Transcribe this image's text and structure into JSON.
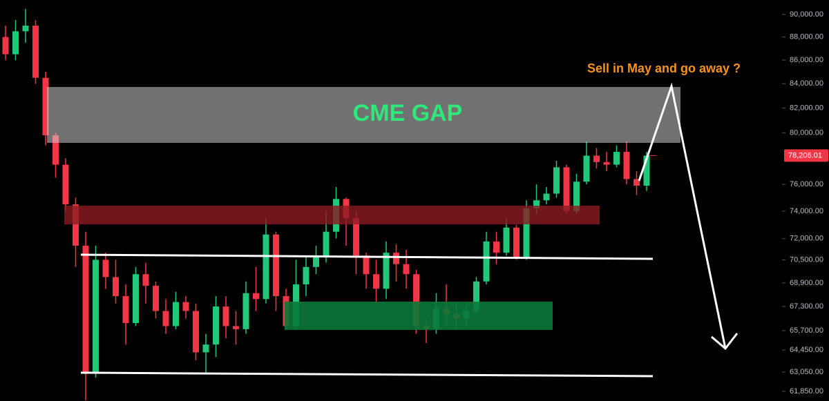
{
  "chart_data": {
    "type": "candlestick",
    "log_scale": true,
    "ylim": [
      61260,
      91300
    ],
    "yticks": [
      {
        "value": 90000,
        "label": "90,000.00"
      },
      {
        "value": 88000,
        "label": "88,000.00"
      },
      {
        "value": 86000,
        "label": "86,000.00"
      },
      {
        "value": 84000,
        "label": "84,000.00"
      },
      {
        "value": 82000,
        "label": "82,000.00"
      },
      {
        "value": 80000,
        "label": "80,000.00"
      },
      {
        "value": 76000,
        "label": "76,000.00"
      },
      {
        "value": 74000,
        "label": "74,000.00"
      },
      {
        "value": 72000,
        "label": "72,000.00"
      },
      {
        "value": 70500,
        "label": "70,500.00"
      },
      {
        "value": 68900,
        "label": "68,900.00"
      },
      {
        "value": 67300,
        "label": "67,300.00"
      },
      {
        "value": 65700,
        "label": "65,700.00"
      },
      {
        "value": 64450,
        "label": "64,450.00"
      },
      {
        "value": 63050,
        "label": "63,050.00"
      },
      {
        "value": 61850,
        "label": "61,850.00"
      }
    ],
    "last_price": {
      "value": 78206.01,
      "label": "78,206.01"
    },
    "up_color": "#22c77a",
    "down_color": "#f23645",
    "annotations": [
      "CME GAP",
      "Sell in May and go away ?"
    ],
    "open": [
      88000,
      86500,
      88500,
      89000,
      84500,
      79800,
      77500,
      74500,
      71500,
      63000,
      70500,
      69300,
      68000,
      66200,
      69500,
      68700,
      67000,
      66000,
      67600,
      67000,
      64300,
      64800,
      67300,
      66000,
      65800,
      68200,
      67800,
      72300,
      68000,
      66000,
      68800,
      70000,
      70800,
      72500,
      74900,
      73500,
      70800,
      69500,
      68500,
      71000,
      70200,
      69500,
      66000,
      65800,
      67200,
      66800,
      66500,
      67000,
      69000,
      71800,
      71000,
      72800,
      70700,
      74200,
      74800,
      75300,
      77300,
      74000,
      76200,
      78200,
      77700,
      77500,
      78500,
      76400,
      75900
    ],
    "high": [
      89000,
      89500,
      90500,
      89500,
      85000,
      80000,
      78000,
      75000,
      72500,
      71500,
      71000,
      70500,
      68800,
      70000,
      70300,
      69000,
      67800,
      68300,
      68000,
      67500,
      65500,
      68000,
      68000,
      67000,
      69000,
      70000,
      73500,
      72500,
      68500,
      70500,
      70800,
      71500,
      74000,
      75800,
      75000,
      74000,
      71000,
      70500,
      71800,
      71600,
      71200,
      69800,
      66500,
      68200,
      68800,
      67500,
      67400,
      69300,
      72500,
      72500,
      73500,
      73000,
      74800,
      76000,
      75800,
      77800,
      77500,
      76800,
      79300,
      78800,
      78500,
      79000,
      79300,
      77000,
      78500
    ],
    "low": [
      86000,
      86000,
      87500,
      84000,
      79000,
      76500,
      74000,
      70000,
      61300,
      62700,
      68500,
      67500,
      64800,
      66000,
      67500,
      66500,
      65500,
      65800,
      66500,
      63800,
      62900,
      64000,
      65200,
      64800,
      65500,
      67000,
      67500,
      67000,
      65800,
      65800,
      68000,
      69500,
      70300,
      72000,
      71500,
      69500,
      68500,
      67500,
      67800,
      69000,
      68500,
      65500,
      64900,
      65500,
      66000,
      65800,
      66000,
      66800,
      68800,
      70200,
      70800,
      70500,
      70500,
      73800,
      74500,
      75000,
      73800,
      73800,
      76000,
      77200,
      77000,
      77300,
      76000,
      75200,
      75500
    ],
    "close": [
      86500,
      88500,
      89000,
      84500,
      79800,
      77500,
      74500,
      71500,
      63000,
      70500,
      69300,
      68000,
      66200,
      69500,
      68700,
      67000,
      66000,
      67600,
      67000,
      64300,
      64800,
      67300,
      66000,
      65800,
      68200,
      67800,
      72300,
      68000,
      66000,
      68800,
      70000,
      70800,
      72500,
      74900,
      73500,
      70800,
      69500,
      68500,
      71000,
      70200,
      69500,
      66000,
      65800,
      67200,
      66800,
      66500,
      67000,
      69000,
      71800,
      71000,
      72800,
      70700,
      74200,
      74800,
      75300,
      77300,
      74000,
      76200,
      78200,
      77700,
      77500,
      78500,
      76400,
      75900,
      78206.01
    ]
  }
}
